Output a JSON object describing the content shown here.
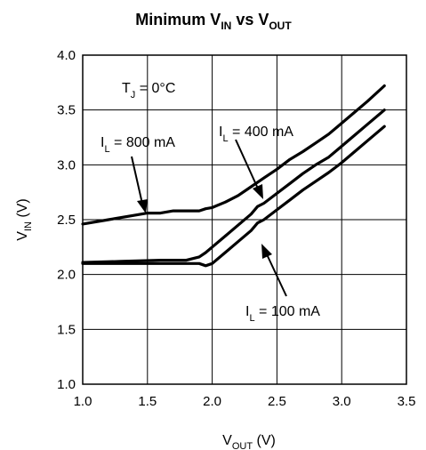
{
  "chart_data": {
    "type": "line",
    "title": {
      "main": "Minimum V",
      "sub1": "IN",
      "mid": " vs V",
      "sub2": "OUT"
    },
    "xlabel": {
      "main": "V",
      "sub": "OUT",
      "rest": " (V)"
    },
    "ylabel": {
      "main": "V",
      "sub": "IN",
      "rest": " (V)"
    },
    "xlim": [
      1.0,
      3.5
    ],
    "ylim": [
      1.0,
      4.0
    ],
    "xticks": [
      "1.0",
      "1.5",
      "2.0",
      "2.5",
      "3.0",
      "3.5"
    ],
    "yticks": [
      "1.0",
      "1.5",
      "2.0",
      "2.5",
      "3.0",
      "3.5",
      "4.0"
    ],
    "grid": true,
    "condition": {
      "main": "T",
      "sub": "J",
      "rest": " = 0°C"
    },
    "series": [
      {
        "name": "800 mA",
        "label": {
          "main": "I",
          "sub": "L",
          "rest": " = 800 mA"
        },
        "x": [
          1.0,
          1.2,
          1.4,
          1.5,
          1.6,
          1.7,
          1.8,
          1.9,
          1.95,
          2.0,
          2.1,
          2.2,
          2.3,
          2.4,
          2.5,
          2.6,
          2.7,
          2.8,
          2.9,
          3.0,
          3.1,
          3.2,
          3.33
        ],
        "values": [
          2.46,
          2.5,
          2.54,
          2.56,
          2.56,
          2.58,
          2.58,
          2.58,
          2.6,
          2.61,
          2.66,
          2.72,
          2.8,
          2.88,
          2.96,
          3.05,
          3.12,
          3.2,
          3.28,
          3.38,
          3.48,
          3.58,
          3.72
        ]
      },
      {
        "name": "400 mA",
        "label": {
          "main": "I",
          "sub": "L",
          "rest": " = 400 mA"
        },
        "x": [
          1.0,
          1.3,
          1.6,
          1.8,
          1.9,
          1.95,
          2.0,
          2.1,
          2.2,
          2.3,
          2.35,
          2.4,
          2.5,
          2.6,
          2.7,
          2.8,
          2.9,
          3.0,
          3.1,
          3.2,
          3.33
        ],
        "values": [
          2.11,
          2.12,
          2.13,
          2.13,
          2.16,
          2.2,
          2.25,
          2.35,
          2.45,
          2.55,
          2.62,
          2.65,
          2.74,
          2.83,
          2.92,
          3.0,
          3.07,
          3.17,
          3.27,
          3.37,
          3.5
        ]
      },
      {
        "name": "100 mA",
        "label": {
          "main": "I",
          "sub": "L",
          "rest": " = 100 mA"
        },
        "x": [
          1.0,
          1.3,
          1.6,
          1.8,
          1.9,
          1.95,
          2.0,
          2.1,
          2.2,
          2.3,
          2.35,
          2.4,
          2.5,
          2.6,
          2.7,
          2.8,
          2.9,
          3.0,
          3.1,
          3.2,
          3.33
        ],
        "values": [
          2.1,
          2.1,
          2.1,
          2.1,
          2.1,
          2.08,
          2.1,
          2.2,
          2.3,
          2.4,
          2.47,
          2.5,
          2.59,
          2.68,
          2.77,
          2.85,
          2.93,
          3.02,
          3.12,
          3.22,
          3.35
        ]
      }
    ]
  }
}
